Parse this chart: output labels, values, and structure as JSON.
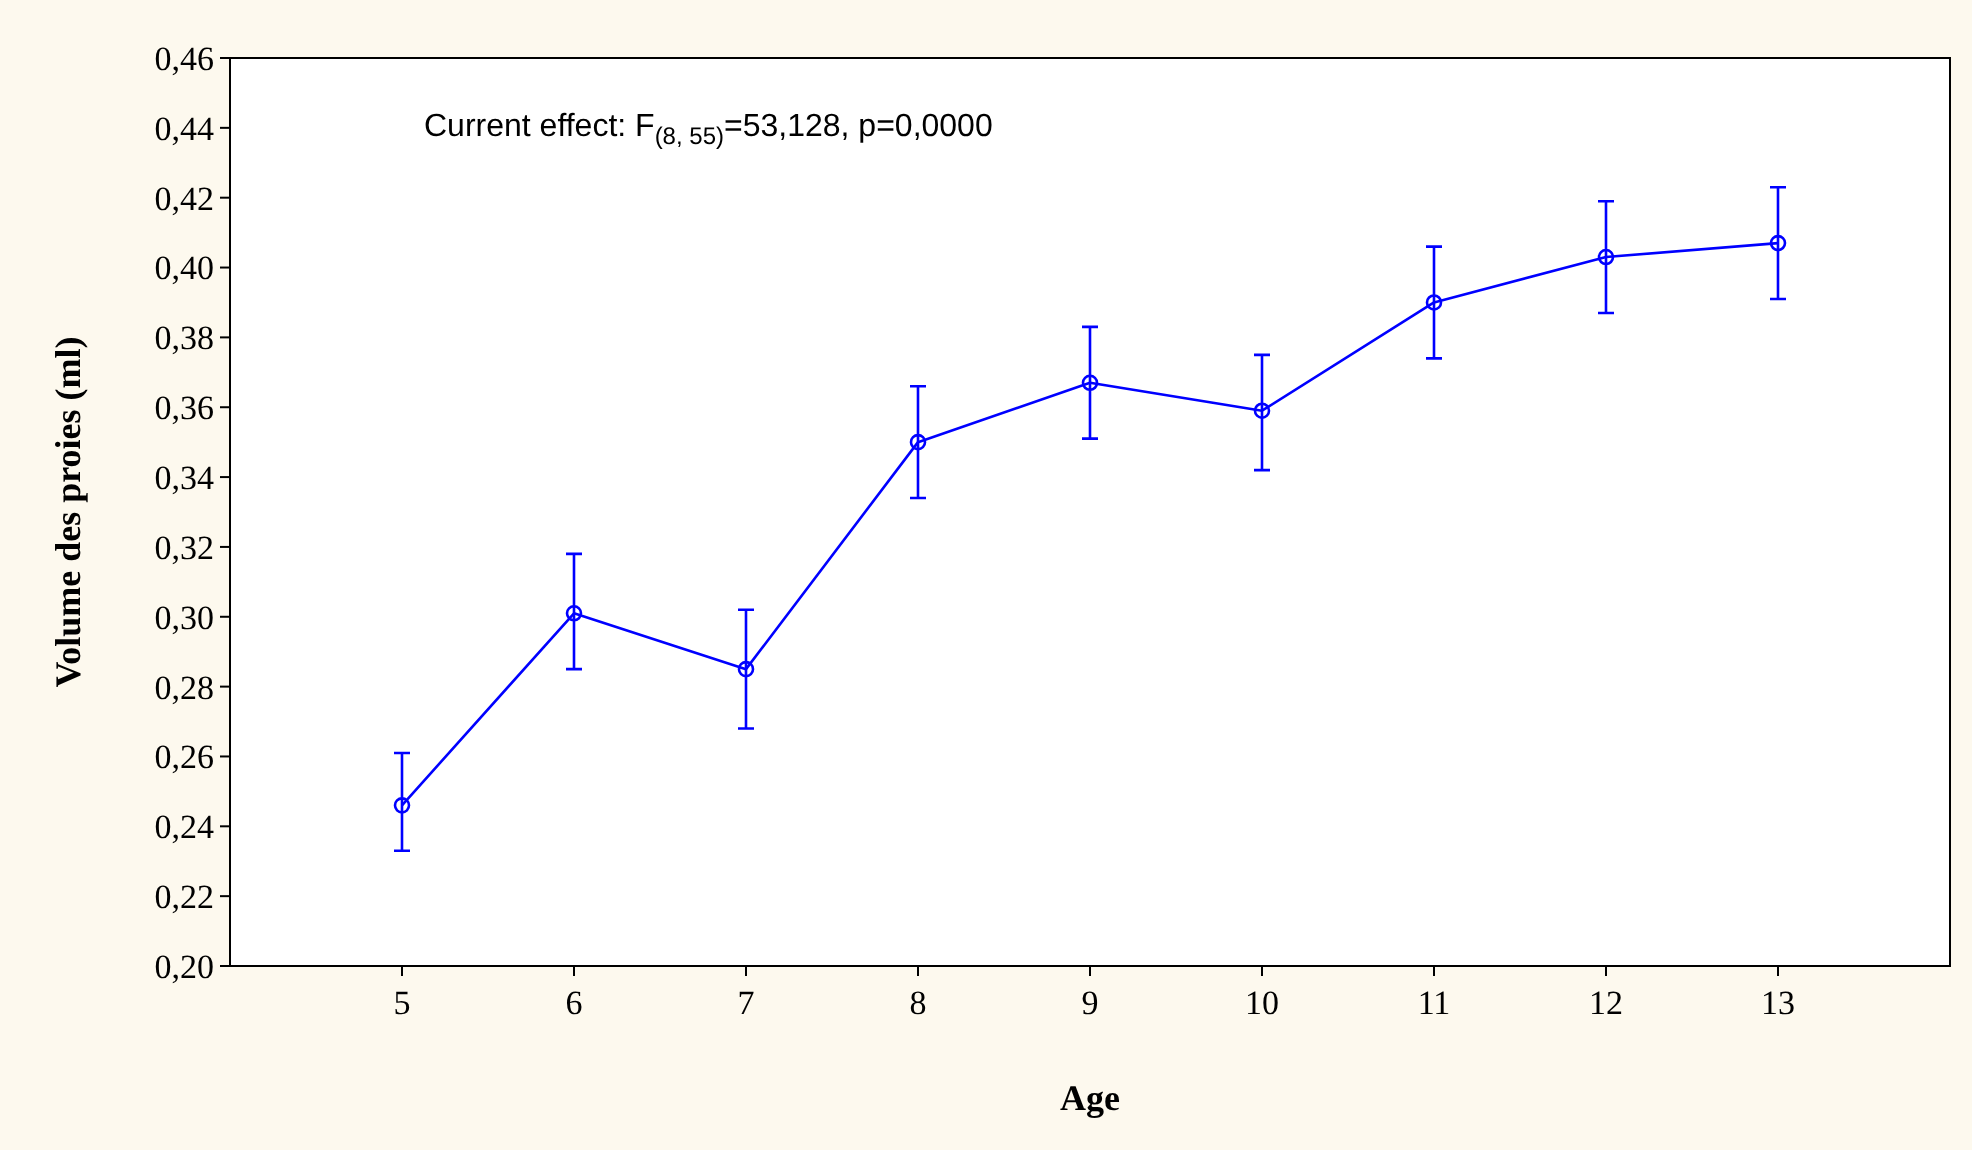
{
  "chart_data": {
    "type": "line",
    "xlabel": "Age",
    "ylabel": "Volume des proies (ml)",
    "annotations": [
      "Current effect: F$_{(8, 55)}$=53,128, p=0,0000"
    ],
    "x": [
      5,
      6,
      7,
      8,
      9,
      10,
      11,
      12,
      13
    ],
    "series": [
      {
        "color": "#0000ff",
        "values": [
          0.246,
          0.301,
          0.285,
          0.35,
          0.367,
          0.359,
          0.39,
          0.403,
          0.407
        ],
        "errors": [
          [
            0.233,
            0.261
          ],
          [
            0.285,
            0.318
          ],
          [
            0.268,
            0.302
          ],
          [
            0.334,
            0.366
          ],
          [
            0.351,
            0.383
          ],
          [
            0.342,
            0.375
          ],
          [
            0.374,
            0.406
          ],
          [
            0.387,
            0.419
          ],
          [
            0.391,
            0.423
          ]
        ]
      }
    ],
    "xlim": [
      4,
      14
    ],
    "xticks": [
      5,
      6,
      7,
      8,
      9,
      10,
      11,
      12,
      13
    ],
    "ylim": [
      0.2,
      0.46
    ],
    "yticks": [
      {
        "value": 0.2,
        "label": "0,20"
      },
      {
        "value": 0.22,
        "label": "0,22"
      },
      {
        "value": 0.24,
        "label": "0,24"
      },
      {
        "value": 0.26,
        "label": "0,26"
      },
      {
        "value": 0.28,
        "label": "0,28"
      },
      {
        "value": 0.3,
        "label": "0,30"
      },
      {
        "value": 0.32,
        "label": "0,32"
      },
      {
        "value": 0.34,
        "label": "0,34"
      },
      {
        "value": 0.36,
        "label": "0,36"
      },
      {
        "value": 0.38,
        "label": "0,38"
      },
      {
        "value": 0.4,
        "label": "0,40"
      },
      {
        "value": 0.42,
        "label": "0,42"
      },
      {
        "value": 0.44,
        "label": "0,44"
      },
      {
        "value": 0.46,
        "label": "0,46"
      }
    ],
    "grid": false,
    "marker": "circle",
    "line_style": "solid"
  }
}
